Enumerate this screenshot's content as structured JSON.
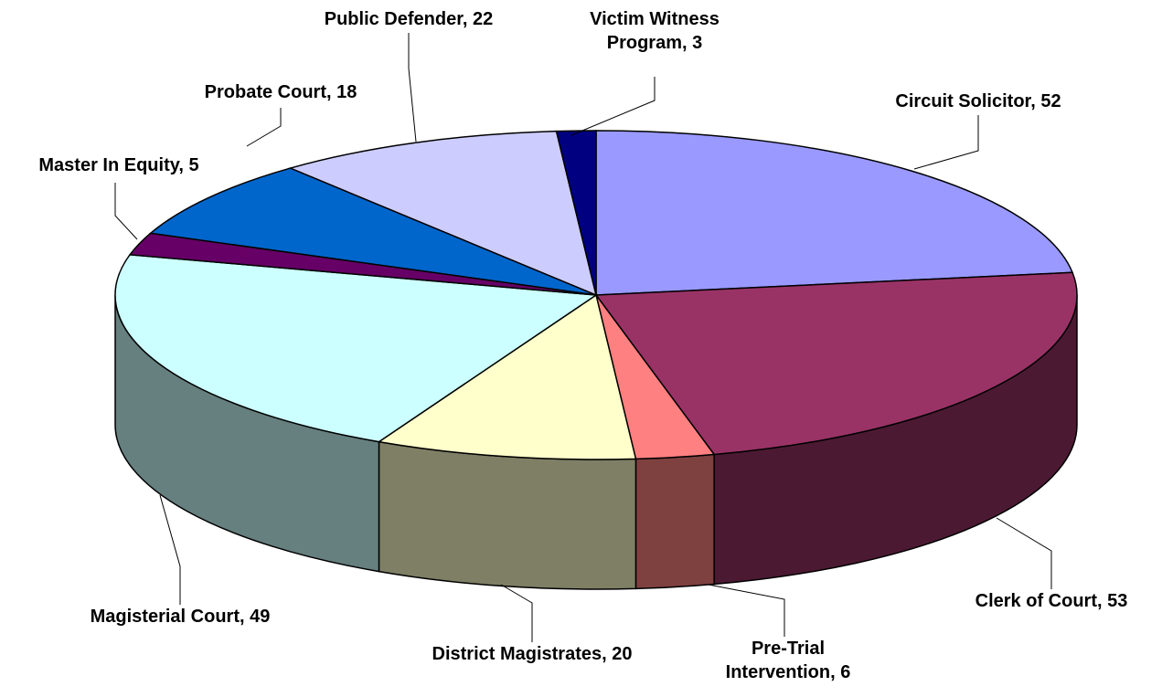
{
  "chart_data": {
    "type": "pie3d",
    "categories": [
      "Circuit Solicitor",
      "Clerk of Court",
      "Pre-Trial Intervention",
      "District Magistrates",
      "Magisterial Court",
      "Master In Equity",
      "Probate Court",
      "Public Defender",
      "Victim Witness Program"
    ],
    "values": [
      52,
      53,
      6,
      20,
      49,
      5,
      18,
      22,
      3
    ],
    "colors": [
      "#9999FF",
      "#993366",
      "#FF8080",
      "#FFFFCC",
      "#CCFFFF",
      "#660066",
      "#0066CC",
      "#CCCCFF",
      "#000080"
    ],
    "separator": ", "
  }
}
